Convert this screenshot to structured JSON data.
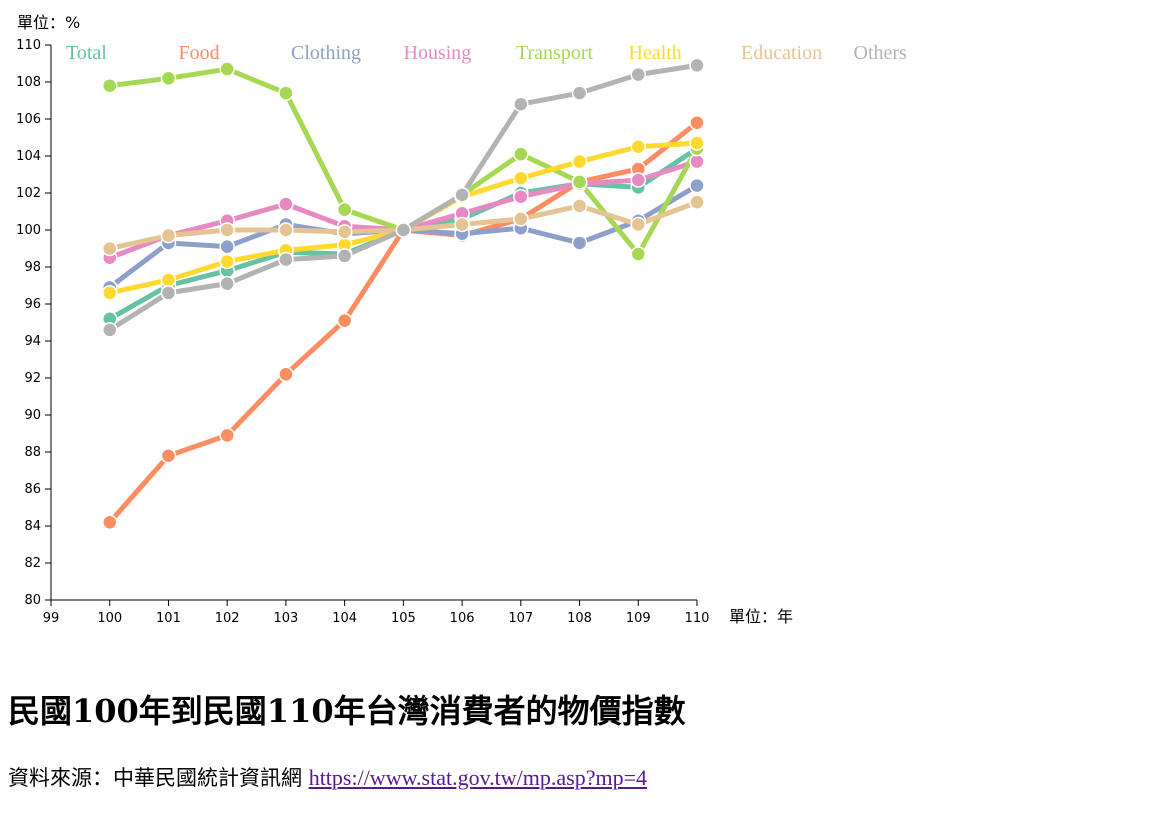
{
  "chart_data": {
    "type": "line",
    "y_unit_label": "單位：%",
    "x_unit_label": "單位：年",
    "xlim": [
      99,
      110
    ],
    "ylim": [
      80,
      110
    ],
    "x_ticks": [
      "99",
      "100",
      "101",
      "102",
      "103",
      "104",
      "105",
      "106",
      "107",
      "108",
      "109",
      "110"
    ],
    "y_ticks": [
      "80",
      "82",
      "84",
      "86",
      "88",
      "90",
      "92",
      "94",
      "96",
      "98",
      "100",
      "102",
      "104",
      "106",
      "108",
      "110"
    ],
    "x": [
      100,
      101,
      102,
      103,
      104,
      105,
      106,
      107,
      108,
      109,
      110
    ],
    "grid": false,
    "legend_position": "top",
    "series": [
      {
        "name": "Total",
        "color": "#66c2a5",
        "values": [
          95.2,
          97.0,
          97.8,
          98.8,
          98.7,
          100.0,
          100.6,
          102.0,
          102.5,
          102.3,
          104.4
        ]
      },
      {
        "name": "Food",
        "color": "#fc8d62",
        "values": [
          84.2,
          87.8,
          88.9,
          92.2,
          95.1,
          100.0,
          99.7,
          100.6,
          102.6,
          103.3,
          105.8
        ]
      },
      {
        "name": "Clothing",
        "color": "#8da0cb",
        "values": [
          96.9,
          99.3,
          99.1,
          100.3,
          99.8,
          100.0,
          99.8,
          100.1,
          99.3,
          100.5,
          102.4
        ]
      },
      {
        "name": "Housing",
        "color": "#e78ac3",
        "values": [
          98.5,
          99.7,
          100.5,
          101.4,
          100.2,
          100.0,
          100.9,
          101.8,
          102.5,
          102.7,
          103.7
        ]
      },
      {
        "name": "Transport",
        "color": "#a6d854",
        "values": [
          107.8,
          108.2,
          108.7,
          107.4,
          101.1,
          100.0,
          101.9,
          104.1,
          102.6,
          98.7,
          104.4
        ]
      },
      {
        "name": "Health",
        "color": "#ffd92f",
        "values": [
          96.6,
          97.3,
          98.3,
          98.9,
          99.2,
          100.0,
          101.8,
          102.8,
          103.7,
          104.5,
          104.7
        ]
      },
      {
        "name": "Education",
        "color": "#e5c494",
        "values": [
          99.0,
          99.7,
          100.0,
          100.0,
          99.9,
          100.0,
          100.3,
          100.6,
          101.3,
          100.3,
          101.5
        ]
      },
      {
        "name": "Others",
        "color": "#b3b3b3",
        "values": [
          94.6,
          96.6,
          97.1,
          98.4,
          98.6,
          100.0,
          101.9,
          106.8,
          107.4,
          108.4,
          108.9
        ]
      }
    ]
  },
  "page": {
    "title": "民國100年到民國110年台灣消費者的物價指數",
    "source_label": "資料來源：中華民國統計資訊網",
    "source_link_text": "https://www.stat.gov.tw/mp.asp?mp=4"
  }
}
